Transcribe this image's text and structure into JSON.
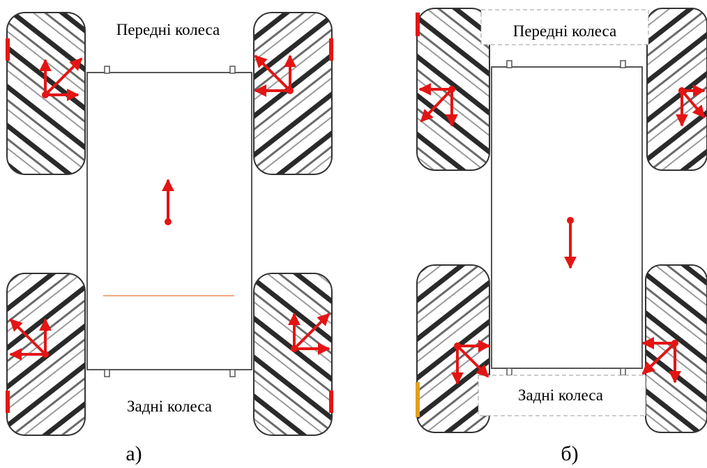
{
  "panels": [
    {
      "id": "a",
      "label": "а)",
      "front_label": "Передні колеса",
      "rear_label": "Задні колеса",
      "body_motion": "forward",
      "wheel_vectors": {
        "front_left": "forward",
        "front_right": "forward",
        "rear_left": "forward",
        "rear_right": "forward"
      }
    },
    {
      "id": "b",
      "label": "б)",
      "front_label": "Передні колеса",
      "rear_label": "Задні колеса",
      "body_motion": "backward",
      "wheel_vectors": {
        "front_left": "backward",
        "front_right": "backward",
        "rear_left": "backward",
        "rear_right": "backward"
      }
    }
  ],
  "colors": {
    "arrow": "#e41414",
    "outline": "#333333",
    "wheel_fill": "#ffffff",
    "wheel_stripe": "#2a2a2a",
    "accent_line": "#f08a5a"
  }
}
